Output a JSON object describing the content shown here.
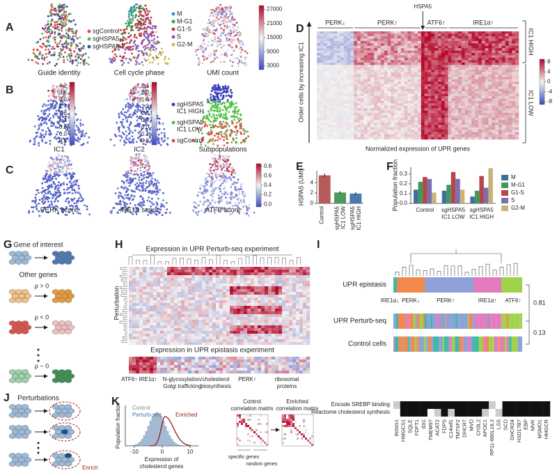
{
  "panel_letters": [
    "A",
    "B",
    "C",
    "D",
    "E",
    "F",
    "G",
    "H",
    "I",
    "J",
    "K"
  ],
  "a": {
    "captions": [
      "Guide identity",
      "Cell cycle phase",
      "UMI count"
    ],
    "guide_legend": [
      {
        "name": "sgControl",
        "color": "#e0504a"
      },
      {
        "name": "sgHSPA5-1",
        "color": "#5cb85c"
      },
      {
        "name": "sgHSPA5-2",
        "color": "#3b4aa0"
      }
    ],
    "phase_legend": [
      {
        "name": "M",
        "color": "#3b8fd0"
      },
      {
        "name": "M-G1",
        "color": "#2f9e5a"
      },
      {
        "name": "G1-S",
        "color": "#c0393f"
      },
      {
        "name": "S",
        "color": "#8a5ab8"
      },
      {
        "name": "G2-M",
        "color": "#c8c040"
      }
    ],
    "umi_ticks": [
      27000,
      21000,
      15000,
      9000,
      3000
    ]
  },
  "b": {
    "captions": [
      "IC1",
      "IC2",
      "Subpopulations"
    ],
    "ic1_ticks": [
      4.2,
      3.6,
      {
        "value": 3,
        "label": "3.0"
      },
      2.4,
      1.8,
      1.2,
      0.6,
      {
        "value": 0,
        "label": "0.0"
      },
      -0.6
    ],
    "ic2_ticks": [
      2.4,
      {
        "value": 2,
        "label": "2.0"
      },
      1.6,
      1.2,
      0.8,
      0.4,
      {
        "value": 0,
        "label": "0.0"
      },
      -0.4,
      -0.8
    ],
    "legend": [
      {
        "lines": [
          "sgHSPA5",
          "IC1 HIGH"
        ],
        "color": "#3b3fb8"
      },
      {
        "lines": [
          "sgHSPA5",
          "IC1 LOW"
        ],
        "color": "#4fc040"
      },
      {
        "lines": [
          "sgControl"
        ],
        "color": "#e04848"
      }
    ]
  },
  "c": {
    "captions": [
      "PERK score",
      "IRE1α score",
      "ATF6 score"
    ],
    "ticks": [
      0.8,
      0.6,
      0.4,
      0.2,
      {
        "value": 0,
        "label": "0.0"
      }
    ]
  },
  "d": {
    "groups": [
      "PERK↓",
      "PERK↑",
      "HSPA5",
      "ATF6↑",
      "IRE1α↑"
    ],
    "y_label": "Order cells by increasing IC1",
    "x_label": "Normalized expression of UPR genes",
    "brackets": [
      "IC1 HIGH",
      "IC1 LOW"
    ],
    "ticks": [
      8,
      4,
      0,
      -4,
      -8
    ]
  },
  "chart_data": [
    {
      "type": "bar",
      "ylabel": "HSPA5 (UMI)",
      "categories": [
        [
          "Control"
        ],
        [
          "sgHSPA5",
          "IC1 LOW"
        ],
        [
          "sgHSPA5",
          "IC1 HIGH"
        ]
      ],
      "values": [
        5.4,
        2.1,
        1.9
      ],
      "errors": [
        0.35,
        0.25,
        0.3
      ],
      "colors": [
        "#b85a5a",
        "#4e9a5a",
        "#4a78b0"
      ],
      "ylim": [
        0,
        6.3
      ],
      "yticks": [
        0,
        2,
        4
      ]
    },
    {
      "type": "grouped_bar",
      "ylabel": "Population fraction",
      "categories": [
        [
          "Control"
        ],
        [
          "sgHSPA5",
          "IC1 LOW"
        ],
        [
          "sgHSPA5",
          "IC1 HIGH"
        ]
      ],
      "series": [
        {
          "name": "M",
          "color": "#3f6f9a",
          "values": [
            0.14,
            0.13,
            0.07
          ]
        },
        {
          "name": "M-G1",
          "color": "#3d9a5b",
          "values": [
            0.22,
            0.19,
            0.13
          ]
        },
        {
          "name": "G1-S",
          "color": "#b5474b",
          "values": [
            0.27,
            0.32,
            0.28
          ]
        },
        {
          "name": "S",
          "color": "#7c6fb0",
          "values": [
            0.25,
            0.25,
            0.16
          ]
        },
        {
          "name": "G2-M",
          "color": "#c9b27a",
          "values": [
            0.11,
            0.14,
            0.36
          ]
        }
      ],
      "ylim": [
        0,
        0.37
      ],
      "yticks": [
        {
          "value": 0,
          "label": "0.0"
        },
        0.1,
        0.2,
        0.3
      ]
    }
  ],
  "g": {
    "title": "Gene of interest",
    "other": "Other genes",
    "rhos": [
      "ρ > 0",
      "ρ < 0",
      "ρ ~ 0"
    ]
  },
  "h": {
    "title": "Expression in UPR Perturb-seq experiment",
    "y_label": "Perturbation",
    "title2": "Expression in UPR epistasis experiment",
    "modules": [
      [
        "ATF6↑ IRE1α↑"
      ],
      [
        "N-glycosylation/",
        "Golgi trafficking"
      ],
      [
        "cholesterol",
        "biosynthesis"
      ],
      [
        "PERK↑"
      ],
      [
        "ribosomal",
        "proteins"
      ]
    ]
  },
  "i": {
    "rows": [
      "UPR epistasis",
      "UPR Perturb-seq",
      "Control cells"
    ],
    "groups": [
      "IRE1α↓",
      "PERK↓",
      "PERK↑",
      "IRE1α↑",
      "ATF6↑"
    ],
    "similarities": [
      "0.81",
      "0.13"
    ]
  },
  "j": {
    "title": "Perturbations",
    "enrich": "Enrich"
  },
  "k": {
    "y_label": "Population fraction",
    "x_label": [
      "Expression of",
      "cholesterol genes"
    ],
    "legend": [
      "Control",
      "Perturb-seq",
      "Enriched"
    ],
    "xticks": [
      -10,
      0,
      10
    ],
    "matrix_titles": [
      [
        "Control",
        "correlation matrix"
      ],
      [
        "Enriched",
        "correlation matrix"
      ]
    ],
    "gene_sets": [
      "specific genes",
      "random genes"
    ],
    "tracks": [
      "Encode SREBP binding",
      "Reactome cholesterol synthesis"
    ],
    "genes": [
      "INSIG1",
      "HMGCS1",
      "SQLE",
      "FDFT1",
      "IDI1",
      "TMEM97",
      "ACAT2",
      "FDPS",
      "C14orf1",
      "TM7SF2",
      "DHCR7",
      "MVD",
      "CH3L2",
      "APOC1",
      "RP11-660L16.2",
      "LSS",
      "SCD",
      "DHCR24",
      "HSD17B7",
      "EBP",
      "MVK",
      "MSMO1",
      "HMGCR"
    ]
  }
}
